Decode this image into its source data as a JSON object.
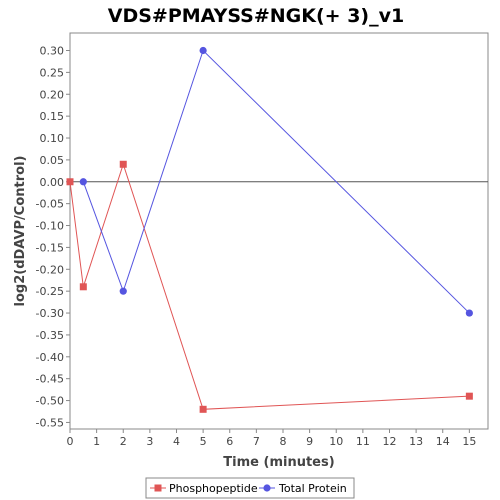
{
  "chart_data": {
    "type": "line",
    "title": "VDS#PMAYSS#NGK(+ 3)_v1",
    "xlabel": "Time (minutes)",
    "ylabel": "log2(dDAVP/Control)",
    "xlim": [
      0,
      15.7
    ],
    "ylim": [
      -0.565,
      0.34
    ],
    "x_ticks": [
      0,
      1,
      2,
      3,
      4,
      5,
      6,
      7,
      8,
      9,
      10,
      11,
      12,
      13,
      14,
      15
    ],
    "y_ticks": [
      0.3,
      0.25,
      0.2,
      0.15,
      0.1,
      0.05,
      0.0,
      -0.05,
      -0.1,
      -0.15,
      -0.2,
      -0.25,
      -0.3,
      -0.35,
      -0.4,
      -0.45,
      -0.5,
      -0.55
    ],
    "grid": false,
    "zero_line": true,
    "legend_position": "bottom",
    "series": [
      {
        "name": "Phosphopeptide",
        "color": "#e05555",
        "marker": "square",
        "x": [
          0,
          0.5,
          2,
          5,
          15
        ],
        "y": [
          0.0,
          -0.24,
          0.04,
          -0.52,
          -0.49
        ]
      },
      {
        "name": "Total Protein",
        "color": "#5555e0",
        "marker": "circle",
        "x": [
          0.5,
          2,
          5,
          15
        ],
        "y": [
          0.0,
          -0.25,
          0.3,
          -0.3
        ]
      }
    ]
  }
}
